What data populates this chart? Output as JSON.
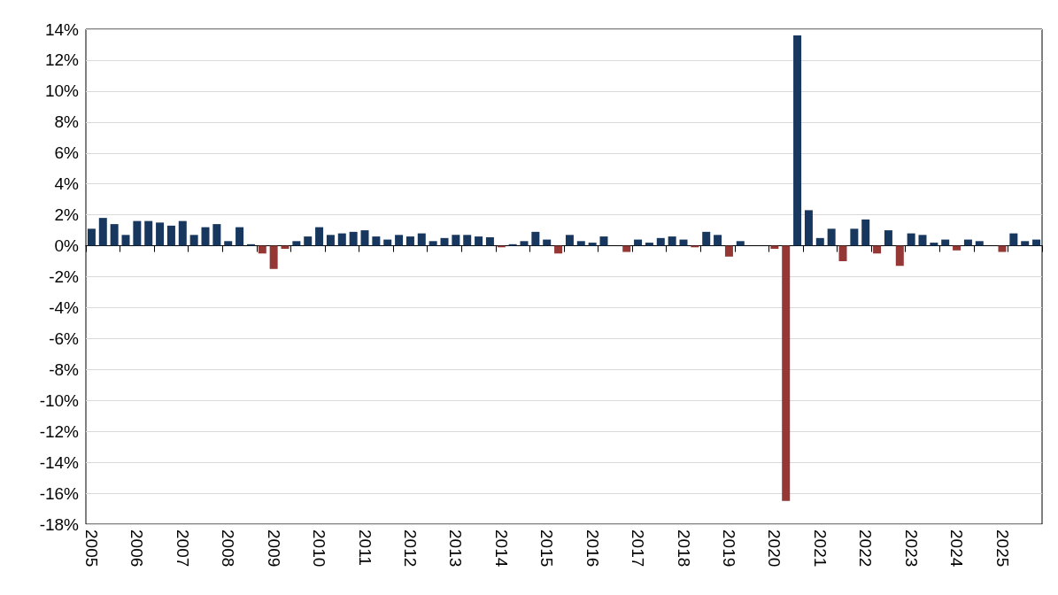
{
  "chart_data": {
    "type": "bar",
    "categories": [
      "2005",
      null,
      null,
      null,
      "2006",
      null,
      null,
      null,
      "2007",
      null,
      null,
      null,
      "2008",
      null,
      null,
      null,
      "2009",
      null,
      null,
      null,
      "2010",
      null,
      null,
      null,
      "2011",
      null,
      null,
      null,
      "2012",
      null,
      null,
      null,
      "2013",
      null,
      null,
      null,
      "2014",
      null,
      null,
      null,
      "2015",
      null,
      null,
      null,
      "2016",
      null,
      null,
      null,
      "2017",
      null,
      null,
      null,
      "2018",
      null,
      null,
      null,
      "2019",
      null,
      null,
      null,
      "2020",
      null,
      null,
      null,
      "2021",
      null,
      null,
      null,
      "2022",
      null,
      null,
      null,
      "2023",
      null,
      null,
      null,
      "2024",
      null,
      null,
      null,
      "2025",
      null,
      null,
      null
    ],
    "values": [
      1.1,
      1.8,
      1.4,
      0.7,
      1.6,
      1.6,
      1.5,
      1.3,
      1.6,
      0.7,
      1.2,
      1.4,
      0.3,
      1.2,
      0.1,
      -0.5,
      -1.5,
      -0.2,
      0.3,
      0.6,
      1.2,
      0.7,
      0.8,
      0.9,
      1.0,
      0.6,
      0.4,
      0.7,
      0.6,
      0.8,
      0.3,
      0.5,
      0.7,
      0.7,
      0.6,
      0.55,
      -0.1,
      0.1,
      0.3,
      0.9,
      0.4,
      -0.5,
      0.7,
      0.3,
      0.2,
      0.6,
      0.0,
      -0.4,
      0.4,
      0.2,
      0.5,
      0.6,
      0.4,
      -0.1,
      0.9,
      0.7,
      -0.7,
      0.3,
      0.0,
      0.0,
      -0.2,
      -16.5,
      13.6,
      2.3,
      0.5,
      1.1,
      -1.0,
      1.1,
      1.7,
      -0.5,
      1.0,
      -1.3,
      0.8,
      0.7,
      0.2,
      0.4,
      -0.3,
      0.4,
      0.3,
      0.0,
      -0.4,
      0.8,
      0.3,
      0.4
    ],
    "colors": [
      "#17375e",
      "#17375e",
      "#17375e",
      "#17375e",
      "#17375e",
      "#17375e",
      "#17375e",
      "#17375e",
      "#17375e",
      "#17375e",
      "#17375e",
      "#17375e",
      "#17375e",
      "#17375e",
      "#17375e",
      "#953735",
      "#953735",
      "#953735",
      "#17375e",
      "#17375e",
      "#17375e",
      "#17375e",
      "#17375e",
      "#17375e",
      "#17375e",
      "#17375e",
      "#17375e",
      "#17375e",
      "#17375e",
      "#17375e",
      "#17375e",
      "#17375e",
      "#17375e",
      "#17375e",
      "#17375e",
      "#17375e",
      "#953735",
      "#17375e",
      "#17375e",
      "#17375e",
      "#17375e",
      "#953735",
      "#17375e",
      "#17375e",
      "#17375e",
      "#17375e",
      "#17375e",
      "#953735",
      "#17375e",
      "#17375e",
      "#17375e",
      "#17375e",
      "#17375e",
      "#953735",
      "#17375e",
      "#17375e",
      "#953735",
      "#17375e",
      "#17375e",
      "#17375e",
      "#953735",
      "#953735",
      "#17375e",
      "#17375e",
      "#17375e",
      "#17375e",
      "#953735",
      "#17375e",
      "#17375e",
      "#953735",
      "#17375e",
      "#953735",
      "#17375e",
      "#17375e",
      "#17375e",
      "#17375e",
      "#953735",
      "#17375e",
      "#17375e",
      "#17375e",
      "#953735",
      "#17375e",
      "#17375e",
      "#17375e"
    ],
    "ylim": [
      -18,
      14
    ],
    "yticks": [
      {
        "value": -18,
        "label": "-18%"
      },
      {
        "value": -16,
        "label": "-16%"
      },
      {
        "value": -14,
        "label": "-14%"
      },
      {
        "value": -12,
        "label": "-12%"
      },
      {
        "value": -10,
        "label": "-10%"
      },
      {
        "value": -8,
        "label": "-8%"
      },
      {
        "value": -6,
        "label": "-6%"
      },
      {
        "value": -4,
        "label": "-4%"
      },
      {
        "value": -2,
        "label": "-2%"
      },
      {
        "value": 0,
        "label": "0%"
      },
      {
        "value": 2,
        "label": "2%"
      },
      {
        "value": 4,
        "label": "4%"
      },
      {
        "value": 6,
        "label": "6%"
      },
      {
        "value": 8,
        "label": "8%"
      },
      {
        "value": 10,
        "label": "10%"
      },
      {
        "value": 12,
        "label": "12%"
      },
      {
        "value": 14,
        "label": "14%"
      }
    ],
    "grid": "y"
  }
}
